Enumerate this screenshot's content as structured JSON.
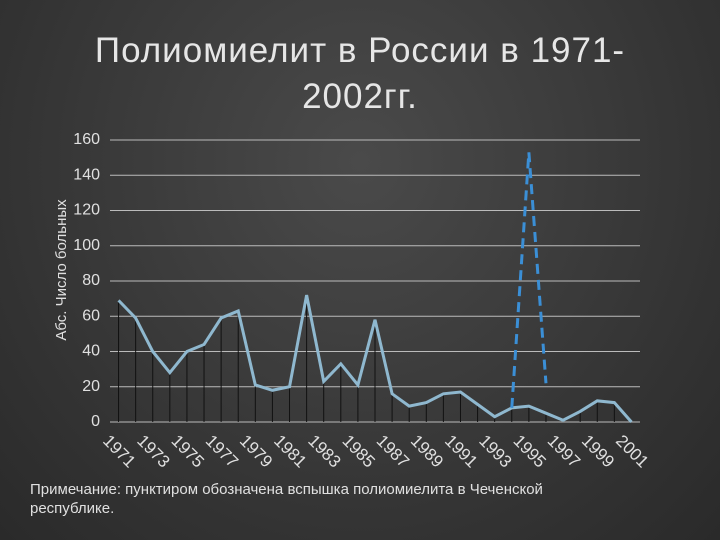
{
  "chart_data": {
    "type": "line",
    "title": "Полиомиелит в России в 1971-2002гг.",
    "y_label": "Абс. Число больных",
    "note": "Примечание: пунктиром обозначена вспышка полиомиелита в Чеченской республике.",
    "categories": [
      "1971",
      null,
      "1973",
      null,
      "1975",
      null,
      "1977",
      null,
      "1979",
      null,
      "1981",
      null,
      "1983",
      null,
      "1985",
      null,
      "1987",
      null,
      "1989",
      null,
      "1991",
      null,
      "1993",
      null,
      "1995",
      null,
      "1997",
      null,
      "1999",
      null,
      "2001"
    ],
    "series": [
      {
        "color": "#8fb8cf",
        "dashed": false,
        "drop_lines": true,
        "values": [
          69,
          59,
          40,
          28,
          40,
          44,
          59,
          63,
          21,
          18,
          20,
          72,
          23,
          33,
          21,
          58,
          16,
          9,
          11,
          16,
          17,
          10,
          3,
          8,
          9,
          5,
          1,
          6,
          12,
          11,
          0
        ]
      },
      {
        "color": "#3b8fd6",
        "dashed": true,
        "drop_lines": false,
        "values": [
          null,
          null,
          null,
          null,
          null,
          null,
          null,
          null,
          null,
          null,
          null,
          null,
          null,
          null,
          null,
          null,
          null,
          null,
          null,
          null,
          null,
          null,
          null,
          8,
          153,
          22,
          null,
          null,
          null,
          null,
          null
        ]
      }
    ],
    "ylim": [
      0,
      160
    ],
    "yticks": [
      0,
      20,
      40,
      60,
      80,
      100,
      120,
      140,
      160
    ],
    "grid": true
  }
}
